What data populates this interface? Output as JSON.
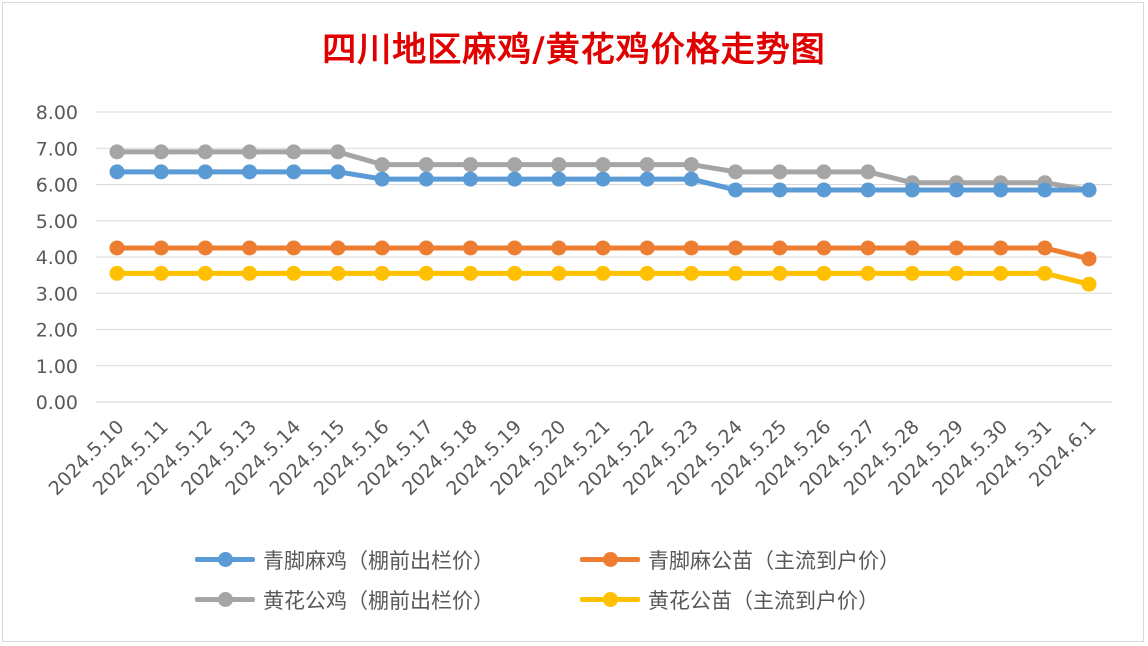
{
  "chart_data": {
    "type": "line",
    "title": "四川地区麻鸡/黄花鸡价格走势图",
    "xlabel": "",
    "ylabel": "",
    "ylim": [
      0,
      8
    ],
    "ytick_labels": [
      "0.00",
      "1.00",
      "2.00",
      "3.00",
      "4.00",
      "5.00",
      "6.00",
      "7.00",
      "8.00"
    ],
    "grid": true,
    "legend_position": "bottom",
    "categories": [
      "2024.5.10",
      "2024.5.11",
      "2024.5.12",
      "2024.5.13",
      "2024.5.14",
      "2024.5.15",
      "2024.5.16",
      "2024.5.17",
      "2024.5.18",
      "2024.5.19",
      "2024.5.20",
      "2024.5.21",
      "2024.5.22",
      "2024.5.23",
      "2024.5.24",
      "2024.5.25",
      "2024.5.26",
      "2024.5.27",
      "2024.5.28",
      "2024.5.29",
      "2024.5.30",
      "2024.5.31",
      "2024.6.1"
    ],
    "series": [
      {
        "name": "青脚麻鸡（棚前出栏价）",
        "color": "#5b9bd5",
        "values": [
          6.35,
          6.35,
          6.35,
          6.35,
          6.35,
          6.35,
          6.15,
          6.15,
          6.15,
          6.15,
          6.15,
          6.15,
          6.15,
          6.15,
          5.85,
          5.85,
          5.85,
          5.85,
          5.85,
          5.85,
          5.85,
          5.85,
          5.85
        ]
      },
      {
        "name": "青脚麻公苗（主流到户价）",
        "color": "#ed7d31",
        "values": [
          4.25,
          4.25,
          4.25,
          4.25,
          4.25,
          4.25,
          4.25,
          4.25,
          4.25,
          4.25,
          4.25,
          4.25,
          4.25,
          4.25,
          4.25,
          4.25,
          4.25,
          4.25,
          4.25,
          4.25,
          4.25,
          4.25,
          3.95
        ]
      },
      {
        "name": "黄花公鸡（棚前出栏价）",
        "color": "#a5a5a5",
        "values": [
          6.9,
          6.9,
          6.9,
          6.9,
          6.9,
          6.9,
          6.55,
          6.55,
          6.55,
          6.55,
          6.55,
          6.55,
          6.55,
          6.55,
          6.35,
          6.35,
          6.35,
          6.35,
          6.05,
          6.05,
          6.05,
          6.05,
          5.85
        ]
      },
      {
        "name": "黄花公苗（主流到户价）",
        "color": "#ffc000",
        "values": [
          3.55,
          3.55,
          3.55,
          3.55,
          3.55,
          3.55,
          3.55,
          3.55,
          3.55,
          3.55,
          3.55,
          3.55,
          3.55,
          3.55,
          3.55,
          3.55,
          3.55,
          3.55,
          3.55,
          3.55,
          3.55,
          3.55,
          3.25
        ]
      }
    ]
  }
}
